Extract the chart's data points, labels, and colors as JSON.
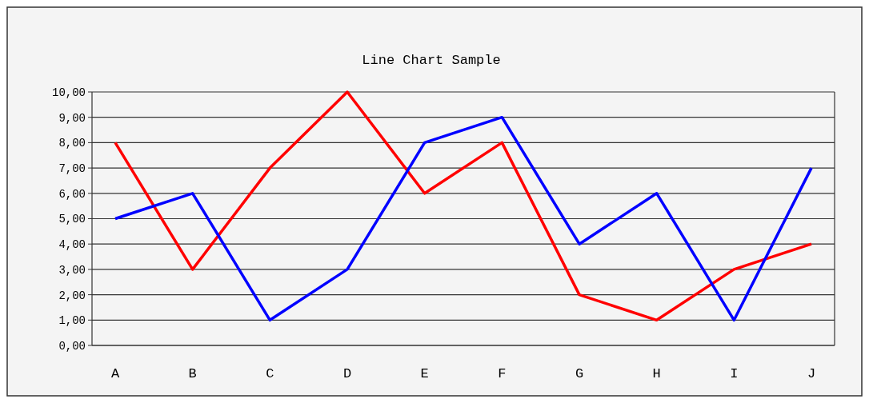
{
  "chart_data": {
    "type": "line",
    "title": "Line Chart Sample",
    "categories": [
      "A",
      "B",
      "C",
      "D",
      "E",
      "F",
      "G",
      "H",
      "I",
      "J"
    ],
    "series": [
      {
        "color": "#ff0000",
        "values": [
          8,
          3,
          7,
          10,
          6,
          8,
          2,
          1,
          3,
          4
        ]
      },
      {
        "color": "#0000ff",
        "values": [
          5,
          6,
          1,
          3,
          8,
          9,
          4,
          6,
          1,
          7
        ]
      }
    ],
    "ylim": [
      0,
      10
    ],
    "yticks": [
      {
        "value": 0,
        "label": "0,00"
      },
      {
        "value": 1,
        "label": "1,00"
      },
      {
        "value": 2,
        "label": "2,00"
      },
      {
        "value": 3,
        "label": "3,00"
      },
      {
        "value": 4,
        "label": "4,00"
      },
      {
        "value": 5,
        "label": "5,00"
      },
      {
        "value": 6,
        "label": "6,00"
      },
      {
        "value": 7,
        "label": "7,00"
      },
      {
        "value": 8,
        "label": "8,00"
      },
      {
        "value": 9,
        "label": "9,00"
      },
      {
        "value": 10,
        "label": "10,00"
      }
    ],
    "grid": "y",
    "marker": "none",
    "line_style": "solid"
  }
}
